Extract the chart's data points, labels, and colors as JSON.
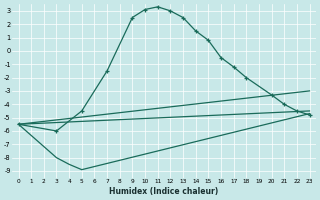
{
  "bg_color": "#c8e8e8",
  "grid_color": "#ffffff",
  "line_color": "#1a6b5a",
  "xlabel": "Humidex (Indice chaleur)",
  "xlim": [
    -0.5,
    23.5
  ],
  "ylim": [
    -9.5,
    3.5
  ],
  "line1_x": [
    0,
    3,
    5,
    7,
    9,
    10,
    11,
    12,
    13,
    14,
    15,
    16,
    17,
    18,
    20,
    21,
    22,
    23
  ],
  "line1_y": [
    -5.5,
    -6.0,
    -4.5,
    -1.5,
    2.5,
    3.1,
    3.3,
    3.0,
    2.5,
    1.5,
    0.8,
    -0.5,
    -1.2,
    -2.0,
    -3.3,
    -4.0,
    -4.5,
    -4.8
  ],
  "line2_x": [
    0,
    23
  ],
  "line2_y": [
    -5.5,
    -3.0
  ],
  "line3_x": [
    0,
    23
  ],
  "line3_y": [
    -5.5,
    -4.5
  ],
  "line4_x": [
    0,
    3,
    4,
    5,
    5,
    23
  ],
  "line4_y": [
    -5.5,
    -8.0,
    -8.5,
    -8.9,
    -8.9,
    -4.7
  ]
}
